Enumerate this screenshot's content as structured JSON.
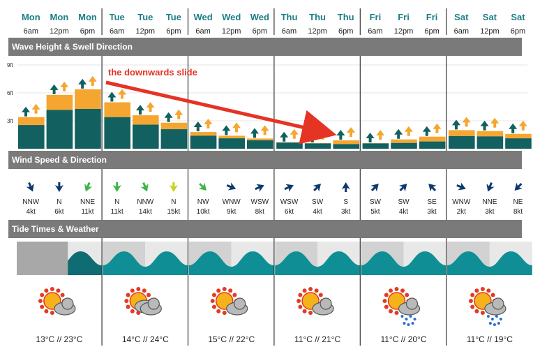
{
  "days": [
    {
      "name": "Mon",
      "slots": [
        {
          "day": "Mon",
          "time": "6am",
          "wave_ft": 3.4,
          "wave_fill": 0.75,
          "swell": "up",
          "dir": "NNW",
          "speed": "4kt",
          "wind_color": "#0c3a6d",
          "tide": "grey"
        },
        {
          "day": "Mon",
          "time": "12pm",
          "wave_ft": 5.8,
          "wave_fill": 0.72,
          "swell": "up",
          "dir": "N",
          "speed": "6kt",
          "wind_color": "#0c3a6d",
          "tide": "grey"
        },
        {
          "day": "Mon",
          "time": "6pm",
          "wave_ft": 6.4,
          "wave_fill": 0.67,
          "swell": "up",
          "dir": "NNE",
          "speed": "11kt",
          "wind_color": "#3fb449",
          "tide": "wave"
        }
      ]
    },
    {
      "name": "Tue",
      "slots": [
        {
          "day": "Tue",
          "time": "6am",
          "wave_ft": 5.0,
          "wave_fill": 0.68,
          "swell": "up",
          "dir": "N",
          "speed": "11kt",
          "wind_color": "#3fb449",
          "tide": "wave"
        },
        {
          "day": "Tue",
          "time": "12pm",
          "wave_ft": 3.6,
          "wave_fill": 0.72,
          "swell": "up",
          "dir": "NNW",
          "speed": "14kt",
          "wind_color": "#3fb449",
          "tide": "wave"
        },
        {
          "day": "Tue",
          "time": "6pm",
          "wave_ft": 2.8,
          "wave_fill": 0.75,
          "swell": "up",
          "dir": "N",
          "speed": "15kt",
          "wind_color": "#c9d31e",
          "tide": "wave"
        }
      ]
    },
    {
      "name": "Wed",
      "slots": [
        {
          "day": "Wed",
          "time": "6am",
          "wave_ft": 1.8,
          "wave_fill": 0.78,
          "swell": "up",
          "dir": "NW",
          "speed": "10kt",
          "wind_color": "#3fb449",
          "tide": "wave"
        },
        {
          "day": "Wed",
          "time": "12pm",
          "wave_ft": 1.4,
          "wave_fill": 0.8,
          "swell": "up",
          "dir": "WNW",
          "speed": "9kt",
          "wind_color": "#0c3a6d",
          "tide": "wave"
        },
        {
          "day": "Wed",
          "time": "6pm",
          "wave_ft": 1.1,
          "wave_fill": 0.82,
          "swell": "up",
          "dir": "WSW",
          "speed": "8kt",
          "wind_color": "#0c3a6d",
          "tide": "wave"
        }
      ]
    },
    {
      "name": "Thu",
      "slots": [
        {
          "day": "Thu",
          "time": "6am",
          "wave_ft": 0.7,
          "wave_fill": 0.95,
          "swell": "up",
          "dir": "WSW",
          "speed": "6kt",
          "wind_color": "#0c3a6d",
          "tide": "wave"
        },
        {
          "day": "Thu",
          "time": "12pm",
          "wave_ft": 0.6,
          "wave_fill": 0.95,
          "swell": "up",
          "dir": "SW",
          "speed": "4kt",
          "wind_color": "#0c3a6d",
          "tide": "wave"
        },
        {
          "day": "Thu",
          "time": "6pm",
          "wave_ft": 0.9,
          "wave_fill": 0.55,
          "swell": "up",
          "dir": "S",
          "speed": "3kt",
          "wind_color": "#0c3a6d",
          "tide": "wave"
        }
      ]
    },
    {
      "name": "Fri",
      "slots": [
        {
          "day": "Fri",
          "time": "6am",
          "wave_ft": 0.6,
          "wave_fill": 0.95,
          "swell": "up",
          "dir": "SW",
          "speed": "5kt",
          "wind_color": "#0c3a6d",
          "tide": "wave"
        },
        {
          "day": "Fri",
          "time": "12pm",
          "wave_ft": 1.0,
          "wave_fill": 0.62,
          "swell": "up",
          "dir": "SW",
          "speed": "4kt",
          "wind_color": "#0c3a6d",
          "tide": "wave"
        },
        {
          "day": "Fri",
          "time": "6pm",
          "wave_ft": 1.3,
          "wave_fill": 0.6,
          "swell": "up",
          "dir": "SE",
          "speed": "3kt",
          "wind_color": "#0c3a6d",
          "tide": "wave"
        }
      ]
    },
    {
      "name": "Sat",
      "slots": [
        {
          "day": "Sat",
          "time": "6am",
          "wave_ft": 2.0,
          "wave_fill": 0.68,
          "swell": "up",
          "dir": "WNW",
          "speed": "2kt",
          "wind_color": "#0c3a6d",
          "tide": "wave"
        },
        {
          "day": "Sat",
          "time": "12pm",
          "wave_ft": 1.9,
          "wave_fill": 0.7,
          "swell": "up",
          "dir": "NNE",
          "speed": "3kt",
          "wind_color": "#0c3a6d",
          "tide": "wave"
        },
        {
          "day": "Sat",
          "time": "6pm",
          "wave_ft": 1.6,
          "wave_fill": 0.7,
          "swell": "up",
          "dir": "NE",
          "speed": "8kt",
          "wind_color": "#0c3a6d",
          "tide": "wave"
        }
      ]
    }
  ],
  "weather": [
    {
      "icon": "sun-cloud-icon",
      "temps": "13°C // 23°C"
    },
    {
      "icon": "sun-clouds-icon",
      "temps": "14°C // 24°C"
    },
    {
      "icon": "sun-cloud-icon",
      "temps": "15°C // 22°C"
    },
    {
      "icon": "sun-cloud-icon",
      "temps": "11°C // 21°C"
    },
    {
      "icon": "sun-rain-icon",
      "temps": "11°C // 20°C"
    },
    {
      "icon": "sun-rain-icon",
      "temps": "11°C // 19°C"
    }
  ],
  "sections": {
    "wave": "Wave Height & Swell Direction",
    "wind": "Wind Speed & Direction",
    "tide": "Tide Times & Weather"
  },
  "wave_axis": [
    "9ft",
    "6ft",
    "3ft"
  ],
  "annotation": "the downwards slide",
  "colors": {
    "teal_dark": "#12605f",
    "swell_orange": "#f5a631",
    "header_grey": "#7a7a7a",
    "day_teal": "#1c7f84",
    "annotation_red": "#e53324",
    "tide_teal": "#0f8f95"
  }
}
